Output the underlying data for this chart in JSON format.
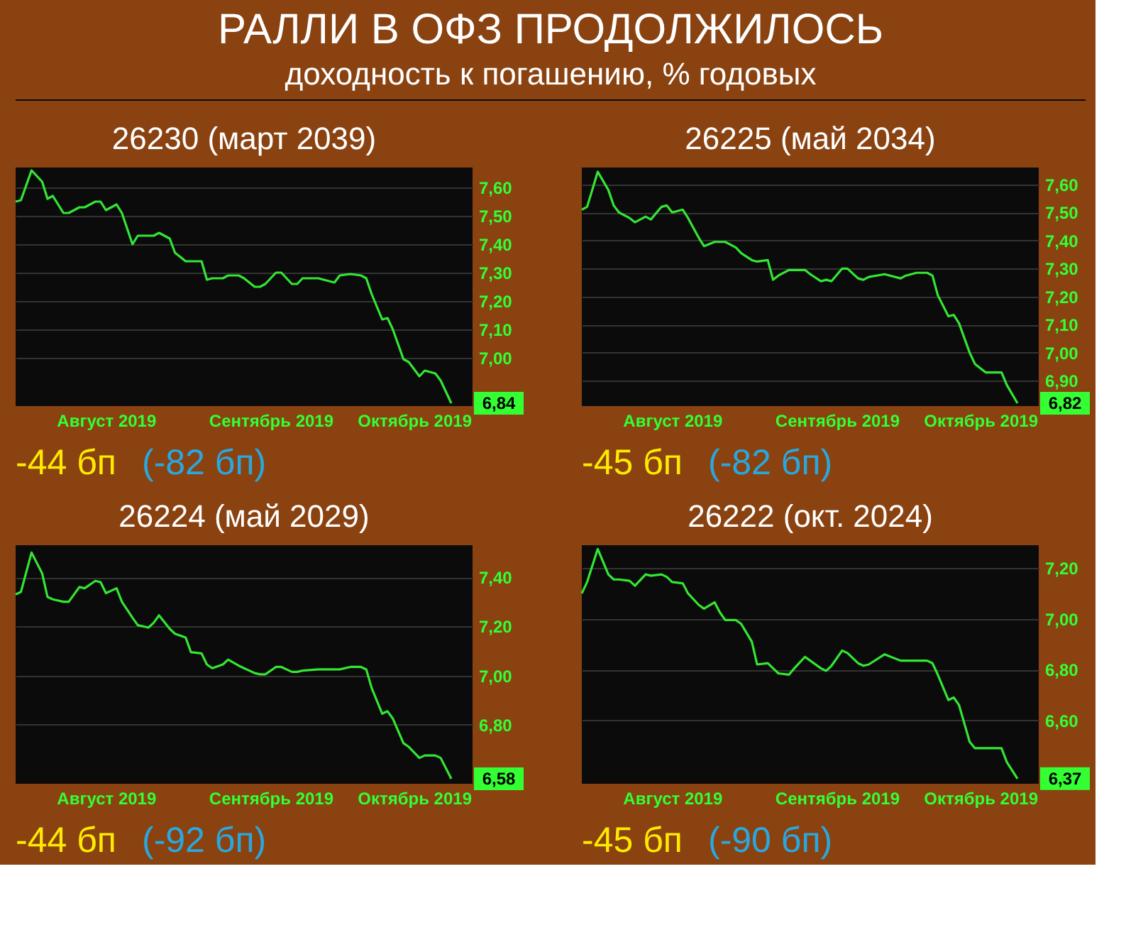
{
  "chart_data": [
    {
      "type": "other",
      "title": "РАЛЛИ В ОФЗ ПРОДОЛЖИЛОСЬ",
      "subtitle": "доходность к погашению, % годовых"
    },
    {
      "type": "line",
      "title": "26230 (март 2039)",
      "color": "#33e633",
      "grid": "y",
      "x": [
        "2019-07-30",
        "2019-07-31",
        "2019-08-02",
        "2019-08-04",
        "2019-08-05",
        "2019-08-06",
        "2019-08-08",
        "2019-08-09",
        "2019-08-11",
        "2019-08-12",
        "2019-08-14",
        "2019-08-15",
        "2019-08-16",
        "2019-08-18",
        "2019-08-19",
        "2019-08-21",
        "2019-08-22",
        "2019-08-24",
        "2019-08-25",
        "2019-08-26",
        "2019-08-28",
        "2019-08-29",
        "2019-08-31",
        "2019-09-01",
        "2019-09-03",
        "2019-09-04",
        "2019-09-05",
        "2019-09-07",
        "2019-09-08",
        "2019-09-10",
        "2019-09-11",
        "2019-09-13",
        "2019-09-14",
        "2019-09-15",
        "2019-09-17",
        "2019-09-18",
        "2019-09-20",
        "2019-09-21",
        "2019-09-22",
        "2019-09-25",
        "2019-09-28",
        "2019-09-29",
        "2019-10-01",
        "2019-10-03",
        "2019-10-04",
        "2019-10-05",
        "2019-10-07",
        "2019-10-08",
        "2019-10-09",
        "2019-10-11",
        "2019-10-12",
        "2019-10-14",
        "2019-10-15",
        "2019-10-17",
        "2019-10-18",
        "2019-10-20"
      ],
      "values": [
        7.55,
        7.555,
        7.66,
        7.62,
        7.56,
        7.57,
        7.51,
        7.51,
        7.53,
        7.53,
        7.55,
        7.55,
        7.52,
        7.54,
        7.51,
        7.4,
        7.43,
        7.43,
        7.43,
        7.44,
        7.42,
        7.37,
        7.34,
        7.34,
        7.34,
        7.275,
        7.28,
        7.28,
        7.29,
        7.29,
        7.28,
        7.25,
        7.25,
        7.26,
        7.3,
        7.3,
        7.26,
        7.26,
        7.28,
        7.28,
        7.265,
        7.29,
        7.295,
        7.29,
        7.28,
        7.225,
        7.135,
        7.14,
        7.1,
        6.995,
        6.985,
        6.935,
        6.955,
        6.945,
        6.92,
        6.84
      ],
      "value_labels": [
        null,
        null,
        null,
        null,
        null,
        null,
        null,
        null,
        null,
        null,
        null,
        null,
        null,
        null,
        null,
        null,
        null,
        null,
        null,
        null,
        null,
        null,
        null,
        null,
        null,
        null,
        null,
        null,
        null,
        null,
        null,
        null,
        null,
        null,
        null,
        null,
        null,
        null,
        null,
        null,
        null,
        null,
        null,
        null,
        null,
        null,
        null,
        null,
        null,
        null,
        null,
        null,
        null,
        null,
        null,
        "6,84"
      ],
      "xlim": [
        "2019-07-30",
        "2019-10-24"
      ],
      "xticks": [
        {
          "value": "2019-08-16",
          "label": "Август 2019"
        },
        {
          "value": "2019-09-16",
          "label": "Сентябрь 2019"
        },
        {
          "value": "2019-10-13",
          "label": "Октябрь 2019"
        }
      ],
      "ylim": [
        6.83,
        7.67
      ],
      "yticks": [
        {
          "value": 7.0,
          "label": "7,00"
        },
        {
          "value": 7.1,
          "label": "7,10"
        },
        {
          "value": 7.2,
          "label": "7,20"
        },
        {
          "value": 7.3,
          "label": "7,30"
        },
        {
          "value": 7.4,
          "label": "7,40"
        },
        {
          "value": 7.5,
          "label": "7,50"
        },
        {
          "value": 7.6,
          "label": "7,60"
        }
      ],
      "annotations": [
        "-44 бп",
        "(-82 бп)"
      ]
    },
    {
      "type": "line",
      "title": "26225 (май 2034)",
      "color": "#33e633",
      "grid": "y",
      "x": [
        "2019-07-30",
        "2019-07-31",
        "2019-08-02",
        "2019-08-04",
        "2019-08-05",
        "2019-08-06",
        "2019-08-08",
        "2019-08-09",
        "2019-08-11",
        "2019-08-12",
        "2019-08-14",
        "2019-08-15",
        "2019-08-16",
        "2019-08-18",
        "2019-08-19",
        "2019-08-21",
        "2019-08-22",
        "2019-08-24",
        "2019-08-25",
        "2019-08-26",
        "2019-08-28",
        "2019-08-29",
        "2019-08-31",
        "2019-09-01",
        "2019-09-03",
        "2019-09-04",
        "2019-09-05",
        "2019-09-07",
        "2019-09-08",
        "2019-09-10",
        "2019-09-11",
        "2019-09-13",
        "2019-09-14",
        "2019-09-15",
        "2019-09-17",
        "2019-09-18",
        "2019-09-20",
        "2019-09-21",
        "2019-09-22",
        "2019-09-25",
        "2019-09-28",
        "2019-09-29",
        "2019-10-01",
        "2019-10-03",
        "2019-10-04",
        "2019-10-05",
        "2019-10-07",
        "2019-10-08",
        "2019-10-09",
        "2019-10-11",
        "2019-10-12",
        "2019-10-14",
        "2019-10-15",
        "2019-10-17",
        "2019-10-18",
        "2019-10-20"
      ],
      "values": [
        7.51,
        7.52,
        7.645,
        7.58,
        7.525,
        7.5,
        7.48,
        7.465,
        7.485,
        7.475,
        7.52,
        7.525,
        7.5,
        7.51,
        7.48,
        7.41,
        7.38,
        7.395,
        7.395,
        7.395,
        7.375,
        7.355,
        7.33,
        7.325,
        7.33,
        7.26,
        7.275,
        7.295,
        7.295,
        7.295,
        7.28,
        7.255,
        7.26,
        7.255,
        7.3,
        7.3,
        7.265,
        7.26,
        7.27,
        7.28,
        7.265,
        7.275,
        7.285,
        7.285,
        7.275,
        7.205,
        7.13,
        7.135,
        7.105,
        7.0,
        6.96,
        6.93,
        6.93,
        6.93,
        6.885,
        6.82
      ],
      "value_labels": [
        null,
        null,
        null,
        null,
        null,
        null,
        null,
        null,
        null,
        null,
        null,
        null,
        null,
        null,
        null,
        null,
        null,
        null,
        null,
        null,
        null,
        null,
        null,
        null,
        null,
        null,
        null,
        null,
        null,
        null,
        null,
        null,
        null,
        null,
        null,
        null,
        null,
        null,
        null,
        null,
        null,
        null,
        null,
        null,
        null,
        null,
        null,
        null,
        null,
        null,
        null,
        null,
        null,
        null,
        null,
        "6,82"
      ],
      "xlim": [
        "2019-07-30",
        "2019-10-24"
      ],
      "xticks": [
        {
          "value": "2019-08-16",
          "label": "Август 2019"
        },
        {
          "value": "2019-09-16",
          "label": "Сентябрь 2019"
        },
        {
          "value": "2019-10-13",
          "label": "Октябрь 2019"
        }
      ],
      "ylim": [
        6.81,
        7.66
      ],
      "yticks": [
        {
          "value": 6.9,
          "label": "6,90"
        },
        {
          "value": 7.0,
          "label": "7,00"
        },
        {
          "value": 7.1,
          "label": "7,10"
        },
        {
          "value": 7.2,
          "label": "7,20"
        },
        {
          "value": 7.3,
          "label": "7,30"
        },
        {
          "value": 7.4,
          "label": "7,40"
        },
        {
          "value": 7.5,
          "label": "7,50"
        },
        {
          "value": 7.6,
          "label": "7,60"
        }
      ],
      "annotations": [
        "-45 бп",
        "(-82 бп)"
      ]
    },
    {
      "type": "line",
      "title": "26224 (май 2029)",
      "color": "#33e633",
      "grid": "y",
      "x": [
        "2019-07-30",
        "2019-07-31",
        "2019-08-02",
        "2019-08-04",
        "2019-08-05",
        "2019-08-06",
        "2019-08-08",
        "2019-08-09",
        "2019-08-11",
        "2019-08-12",
        "2019-08-14",
        "2019-08-15",
        "2019-08-16",
        "2019-08-18",
        "2019-08-19",
        "2019-08-21",
        "2019-08-22",
        "2019-08-24",
        "2019-08-25",
        "2019-08-26",
        "2019-08-28",
        "2019-08-29",
        "2019-08-31",
        "2019-09-01",
        "2019-09-03",
        "2019-09-04",
        "2019-09-05",
        "2019-09-07",
        "2019-09-08",
        "2019-09-10",
        "2019-09-11",
        "2019-09-13",
        "2019-09-14",
        "2019-09-15",
        "2019-09-17",
        "2019-09-18",
        "2019-09-20",
        "2019-09-21",
        "2019-09-22",
        "2019-09-25",
        "2019-09-28",
        "2019-09-29",
        "2019-10-01",
        "2019-10-03",
        "2019-10-04",
        "2019-10-05",
        "2019-10-07",
        "2019-10-08",
        "2019-10-09",
        "2019-10-11",
        "2019-10-12",
        "2019-10-14",
        "2019-10-15",
        "2019-10-17",
        "2019-10-18",
        "2019-10-20"
      ],
      "values": [
        7.33,
        7.34,
        7.5,
        7.415,
        7.32,
        7.31,
        7.3,
        7.3,
        7.36,
        7.355,
        7.385,
        7.38,
        7.335,
        7.355,
        7.3,
        7.235,
        7.205,
        7.195,
        7.215,
        7.245,
        7.19,
        7.17,
        7.155,
        7.095,
        7.09,
        7.045,
        7.03,
        7.045,
        7.065,
        7.04,
        7.03,
        7.01,
        7.005,
        7.005,
        7.035,
        7.035,
        7.015,
        7.015,
        7.02,
        7.025,
        7.025,
        7.025,
        7.035,
        7.035,
        7.025,
        6.95,
        6.845,
        6.855,
        6.825,
        6.725,
        6.71,
        6.665,
        6.675,
        6.675,
        6.665,
        6.58
      ],
      "value_labels": [
        null,
        null,
        null,
        null,
        null,
        null,
        null,
        null,
        null,
        null,
        null,
        null,
        null,
        null,
        null,
        null,
        null,
        null,
        null,
        null,
        null,
        null,
        null,
        null,
        null,
        null,
        null,
        null,
        null,
        null,
        null,
        null,
        null,
        null,
        null,
        null,
        null,
        null,
        null,
        null,
        null,
        null,
        null,
        null,
        null,
        null,
        null,
        null,
        null,
        null,
        null,
        null,
        null,
        null,
        null,
        "6,58"
      ],
      "xlim": [
        "2019-07-30",
        "2019-10-24"
      ],
      "xticks": [
        {
          "value": "2019-08-16",
          "label": "Август 2019"
        },
        {
          "value": "2019-09-16",
          "label": "Сентябрь 2019"
        },
        {
          "value": "2019-10-13",
          "label": "Октябрь 2019"
        }
      ],
      "ylim": [
        6.56,
        7.53
      ],
      "yticks": [
        {
          "value": 6.8,
          "label": "6,80"
        },
        {
          "value": 7.0,
          "label": "7,00"
        },
        {
          "value": 7.2,
          "label": "7,20"
        },
        {
          "value": 7.4,
          "label": "7,40"
        }
      ],
      "annotations": [
        "-44 бп",
        "(-92 бп)"
      ]
    },
    {
      "type": "line",
      "title": "26222 (окт. 2024)",
      "color": "#33e633",
      "grid": "y",
      "x": [
        "2019-07-30",
        "2019-07-31",
        "2019-08-02",
        "2019-08-04",
        "2019-08-05",
        "2019-08-06",
        "2019-08-08",
        "2019-08-09",
        "2019-08-11",
        "2019-08-12",
        "2019-08-14",
        "2019-08-15",
        "2019-08-16",
        "2019-08-18",
        "2019-08-19",
        "2019-08-21",
        "2019-08-22",
        "2019-08-24",
        "2019-08-25",
        "2019-08-26",
        "2019-08-28",
        "2019-08-29",
        "2019-08-31",
        "2019-09-01",
        "2019-09-03",
        "2019-09-04",
        "2019-09-05",
        "2019-09-07",
        "2019-09-08",
        "2019-09-10",
        "2019-09-11",
        "2019-09-13",
        "2019-09-14",
        "2019-09-15",
        "2019-09-17",
        "2019-09-18",
        "2019-09-20",
        "2019-09-21",
        "2019-09-22",
        "2019-09-25",
        "2019-09-28",
        "2019-09-29",
        "2019-10-01",
        "2019-10-03",
        "2019-10-04",
        "2019-10-05",
        "2019-10-07",
        "2019-10-08",
        "2019-10-09",
        "2019-10-11",
        "2019-10-12",
        "2019-10-14",
        "2019-10-15",
        "2019-10-17",
        "2019-10-18",
        "2019-10-20"
      ],
      "values": [
        7.1,
        7.145,
        7.275,
        7.175,
        7.155,
        7.155,
        7.15,
        7.13,
        7.175,
        7.17,
        7.175,
        7.165,
        7.145,
        7.14,
        7.1,
        7.055,
        7.04,
        7.065,
        7.025,
        6.995,
        6.995,
        6.98,
        6.91,
        6.82,
        6.825,
        6.805,
        6.785,
        6.78,
        6.805,
        6.85,
        6.835,
        6.805,
        6.795,
        6.815,
        6.875,
        6.865,
        6.825,
        6.815,
        6.82,
        6.86,
        6.835,
        6.835,
        6.835,
        6.835,
        6.825,
        6.78,
        6.68,
        6.69,
        6.66,
        6.515,
        6.49,
        6.49,
        6.49,
        6.49,
        6.435,
        6.37
      ],
      "value_labels": [
        null,
        null,
        null,
        null,
        null,
        null,
        null,
        null,
        null,
        null,
        null,
        null,
        null,
        null,
        null,
        null,
        null,
        null,
        null,
        null,
        null,
        null,
        null,
        null,
        null,
        null,
        null,
        null,
        null,
        null,
        null,
        null,
        null,
        null,
        null,
        null,
        null,
        null,
        null,
        null,
        null,
        null,
        null,
        null,
        null,
        null,
        null,
        null,
        null,
        null,
        null,
        null,
        null,
        null,
        null,
        "6,37"
      ],
      "xlim": [
        "2019-07-30",
        "2019-10-24"
      ],
      "xticks": [
        {
          "value": "2019-08-16",
          "label": "Август 2019"
        },
        {
          "value": "2019-09-16",
          "label": "Сентябрь 2019"
        },
        {
          "value": "2019-10-13",
          "label": "Октябрь 2019"
        }
      ],
      "ylim": [
        6.35,
        7.29
      ],
      "yticks": [
        {
          "value": 6.6,
          "label": "6,60"
        },
        {
          "value": 6.8,
          "label": "6,80"
        },
        {
          "value": 7.0,
          "label": "7,00"
        },
        {
          "value": 7.2,
          "label": "7,20"
        }
      ],
      "annotations": [
        "-45 бп",
        "(-90 бп)"
      ]
    }
  ]
}
